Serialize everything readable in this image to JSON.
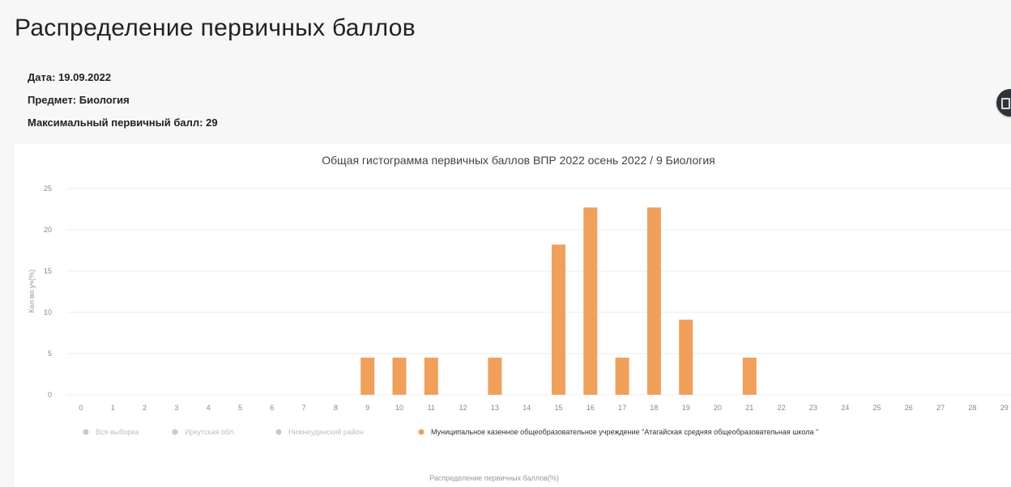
{
  "page": {
    "title": "Распределение первичных баллов",
    "date_line": "Дата: 19.09.2022",
    "subject_line": "Предмет: Биология",
    "max_score_line": "Максимальный первичный балл: 29"
  },
  "colors": {
    "bar": "#f0a05a",
    "inactive_legend": "#c8c8c8",
    "grid": "#ececec",
    "export_button": "#2f3338"
  },
  "icons": {
    "export": "export-menu-icon"
  },
  "chart_data": {
    "type": "bar",
    "title": "Общая гистограмма первичных баллов ВПР 2022 осень 2022 / 9 Биология",
    "xlabel": "Распределение первичных баллов(%)",
    "ylabel": "Кол-во уч(%)",
    "ylim": [
      0,
      25
    ],
    "yticks": [
      0,
      5,
      10,
      15,
      20,
      25
    ],
    "grid": true,
    "legend_position": "bottom",
    "categories": [
      "0",
      "1",
      "2",
      "3",
      "4",
      "5",
      "6",
      "7",
      "8",
      "9",
      "10",
      "11",
      "12",
      "13",
      "14",
      "15",
      "16",
      "17",
      "18",
      "19",
      "20",
      "21",
      "22",
      "23",
      "24",
      "25",
      "26",
      "27",
      "28",
      "29"
    ],
    "legend": [
      {
        "name": "Вся выборка",
        "active": false
      },
      {
        "name": "Иркутская обл.",
        "active": false
      },
      {
        "name": "Нижнеудинский район",
        "active": false
      },
      {
        "name": "Муниципальное казенное общеобразовательное учреждение \"Атагайская средняя общеобразовательная школа \"",
        "active": true
      }
    ],
    "series": [
      {
        "name": "Муниципальное казенное общеобразовательное учреждение \"Атагайская средняя общеобразовательная школа \"",
        "values": [
          0,
          0,
          0,
          0,
          0,
          0,
          0,
          0,
          0,
          4.5,
          4.5,
          4.5,
          0,
          4.5,
          0,
          18.2,
          22.7,
          4.5,
          22.7,
          9.1,
          0,
          4.5,
          0,
          0,
          0,
          0,
          0,
          0,
          0,
          0
        ]
      }
    ]
  }
}
